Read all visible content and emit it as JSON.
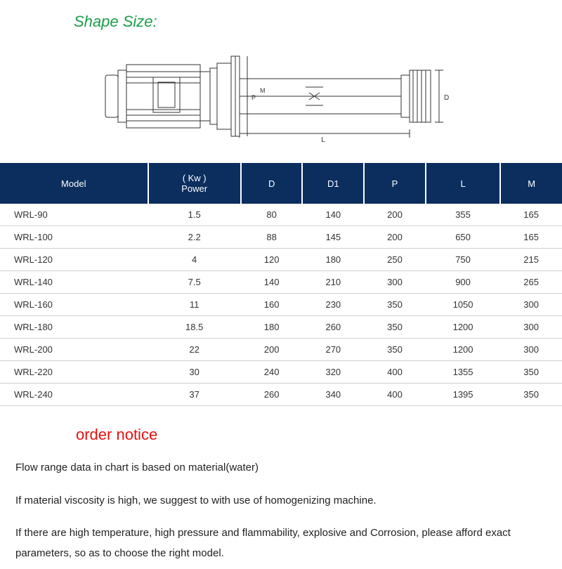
{
  "title_shape": {
    "text": "Shape Size:",
    "color": "#1a9d4a"
  },
  "diagram": {
    "labels": {
      "L": "L",
      "P": "P",
      "D": "D",
      "M": "M"
    },
    "stroke": "#333333"
  },
  "table": {
    "header_bg": "#0b2e5f",
    "header_fg": "#ffffff",
    "row_border": "#d0d0d0",
    "columns": [
      "Model",
      "( Kw )\nPower",
      "D",
      "D1",
      "P",
      "L",
      "M"
    ],
    "rows": [
      [
        "WRL-90",
        "1.5",
        "80",
        "140",
        "200",
        "355",
        "165"
      ],
      [
        "WRL-100",
        "2.2",
        "88",
        "145",
        "200",
        "650",
        "165"
      ],
      [
        "WRL-120",
        "4",
        "120",
        "180",
        "250",
        "750",
        "215"
      ],
      [
        "WRL-140",
        "7.5",
        "140",
        "210",
        "300",
        "900",
        "265"
      ],
      [
        "WRL-160",
        "11",
        "160",
        "230",
        "350",
        "1050",
        "300"
      ],
      [
        "WRL-180",
        "18.5",
        "180",
        "260",
        "350",
        "1200",
        "300"
      ],
      [
        "WRL-200",
        "22",
        "200",
        "270",
        "350",
        "1200",
        "300"
      ],
      [
        "WRL-220",
        "30",
        "240",
        "320",
        "400",
        "1355",
        "350"
      ],
      [
        "WRL-240",
        "37",
        "260",
        "340",
        "400",
        "1395",
        "350"
      ]
    ]
  },
  "notice": {
    "title": "order notice",
    "title_color": "#e91010",
    "paragraphs": [
      "Flow range data in chart is based on material(water)",
      "If material viscosity is high, we suggest to with use of homogenizing machine.",
      "If there are high temperature, high pressure and flammability, explosive and Corrosion, please afford exact parameters, so as to choose the right model."
    ]
  }
}
